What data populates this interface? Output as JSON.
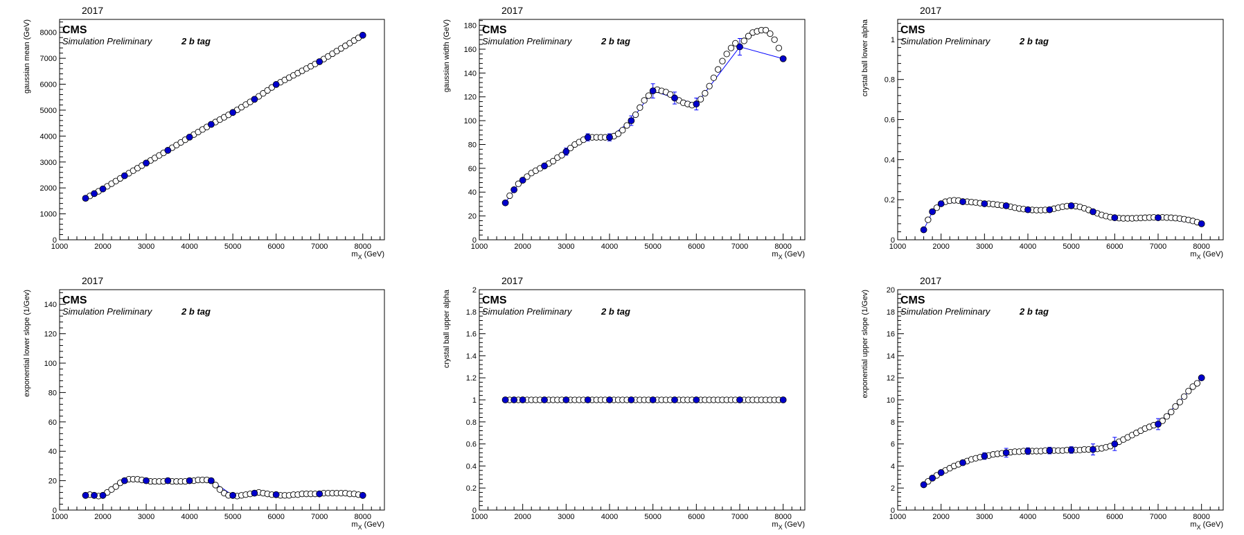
{
  "figure": {
    "year": "2017",
    "experiment": "CMS",
    "status": "Simulation Preliminary",
    "category": "2 b tag",
    "x_axis_label": "m_X (GeV)",
    "x_axis_sub": "X",
    "x_axis_unit": "(GeV)",
    "colors": {
      "fit_point": "#0000cc",
      "fit_line": "#0000ff",
      "interp_point": "#000000",
      "frame": "#000000"
    }
  },
  "chart_data": [
    {
      "type": "scatter",
      "title": "",
      "ylabel": "gaussian mean (GeV)",
      "xlabel": "m_X (GeV)",
      "xlim": [
        1000,
        8500
      ],
      "ylim": [
        0,
        8500
      ],
      "xticks": [
        1000,
        2000,
        3000,
        4000,
        5000,
        6000,
        7000,
        8000
      ],
      "yticks": [
        0,
        1000,
        2000,
        3000,
        4000,
        5000,
        6000,
        7000,
        8000
      ],
      "series": [
        {
          "role": "fit",
          "x": [
            1600,
            1800,
            2000,
            2500,
            3000,
            3500,
            4000,
            4500,
            5000,
            5500,
            6000,
            7000,
            8000
          ],
          "y": [
            1600,
            1780,
            1960,
            2470,
            2960,
            3450,
            3960,
            4450,
            4910,
            5420,
            5990,
            6870,
            7890
          ]
        },
        {
          "role": "interpolated",
          "x_range": [
            1700,
            7900
          ],
          "step": 100
        }
      ]
    },
    {
      "type": "scatter",
      "title": "",
      "ylabel": "gaussian width (GeV)",
      "xlabel": "m_X (GeV)",
      "xlim": [
        1000,
        8500
      ],
      "ylim": [
        0,
        185
      ],
      "xticks": [
        1000,
        2000,
        3000,
        4000,
        5000,
        6000,
        7000,
        8000
      ],
      "yticks": [
        0,
        20,
        40,
        60,
        80,
        100,
        120,
        140,
        160,
        180
      ],
      "series": [
        {
          "role": "fit",
          "x": [
            1600,
            1800,
            2000,
            2500,
            3000,
            3500,
            4000,
            4500,
            5000,
            5500,
            6000,
            7000,
            8000
          ],
          "y": [
            31,
            42,
            50,
            62,
            74,
            86,
            86,
            100,
            125,
            119,
            114,
            162,
            152
          ],
          "err": [
            1,
            1,
            1,
            2,
            3,
            3,
            3,
            4,
            6,
            5,
            5,
            7,
            1
          ]
        },
        {
          "role": "interpolated",
          "x": [
            1700,
            1900,
            2100,
            2200,
            2300,
            2400,
            2600,
            2700,
            2800,
            2900,
            3100,
            3200,
            3300,
            3400,
            3600,
            3700,
            3800,
            3900,
            4100,
            4200,
            4300,
            4400,
            4600,
            4700,
            4800,
            4900,
            5100,
            5200,
            5300,
            5400,
            5600,
            5700,
            5800,
            5900,
            6100,
            6200,
            6300,
            6400,
            6500,
            6600,
            6700,
            6800,
            6900,
            7100,
            7200,
            7300,
            7400,
            7500,
            7600,
            7700,
            7800,
            7900
          ],
          "y": [
            37,
            47,
            53,
            56,
            58,
            60,
            64,
            66,
            69,
            71,
            77,
            80,
            82,
            84,
            86,
            86,
            86,
            86,
            87,
            89,
            92,
            96,
            105,
            111,
            117,
            121,
            126,
            125,
            124,
            122,
            117,
            115,
            114,
            113,
            118,
            123,
            129,
            136,
            143,
            150,
            156,
            161,
            165,
            167,
            171,
            174,
            175,
            176,
            176,
            173,
            168,
            161
          ]
        }
      ]
    },
    {
      "type": "scatter",
      "title": "",
      "ylabel": "crystal ball lower alpha",
      "xlabel": "m_X (GeV)",
      "xlim": [
        1000,
        8500
      ],
      "ylim": [
        0,
        1.1
      ],
      "xticks": [
        1000,
        2000,
        3000,
        4000,
        5000,
        6000,
        7000,
        8000
      ],
      "yticks": [
        0,
        0.2,
        0.4,
        0.6,
        0.8,
        1
      ],
      "series": [
        {
          "role": "fit",
          "x": [
            1600,
            1800,
            2000,
            2500,
            3000,
            3500,
            4000,
            4500,
            5000,
            5500,
            6000,
            7000,
            8000
          ],
          "y": [
            0.05,
            0.14,
            0.18,
            0.19,
            0.18,
            0.17,
            0.15,
            0.15,
            0.17,
            0.14,
            0.11,
            0.11,
            0.08
          ]
        },
        {
          "role": "interpolated",
          "x": [
            1700,
            1900,
            2100,
            2200,
            2300,
            2400,
            2600,
            2700,
            2800,
            2900,
            3100,
            3200,
            3300,
            3400,
            3600,
            3700,
            3800,
            3900,
            4100,
            4200,
            4300,
            4400,
            4600,
            4700,
            4800,
            4900,
            5100,
            5200,
            5300,
            5400,
            5600,
            5700,
            5800,
            5900,
            6100,
            6200,
            6300,
            6400,
            6500,
            6600,
            6700,
            6800,
            6900,
            7100,
            7200,
            7300,
            7400,
            7500,
            7600,
            7700,
            7800,
            7900
          ],
          "y": [
            0.1,
            0.16,
            0.19,
            0.195,
            0.197,
            0.196,
            0.19,
            0.188,
            0.186,
            0.183,
            0.18,
            0.178,
            0.175,
            0.172,
            0.165,
            0.16,
            0.156,
            0.153,
            0.149,
            0.148,
            0.148,
            0.149,
            0.155,
            0.16,
            0.165,
            0.168,
            0.168,
            0.164,
            0.157,
            0.149,
            0.132,
            0.124,
            0.118,
            0.113,
            0.108,
            0.107,
            0.107,
            0.107,
            0.108,
            0.109,
            0.11,
            0.111,
            0.112,
            0.112,
            0.111,
            0.11,
            0.108,
            0.106,
            0.103,
            0.099,
            0.094,
            0.088
          ]
        }
      ]
    },
    {
      "type": "scatter",
      "title": "",
      "ylabel": "exponential lower slope (1/Gev)",
      "xlabel": "m_X (GeV)",
      "xlim": [
        1000,
        8500
      ],
      "ylim": [
        0,
        150
      ],
      "xticks": [
        1000,
        2000,
        3000,
        4000,
        5000,
        6000,
        7000,
        8000
      ],
      "yticks": [
        0,
        20,
        40,
        60,
        80,
        100,
        120,
        140
      ],
      "series": [
        {
          "role": "fit",
          "x": [
            1600,
            1800,
            2000,
            2500,
            3000,
            3500,
            4000,
            4500,
            5000,
            5500,
            6000,
            7000,
            8000
          ],
          "y": [
            10,
            10,
            10,
            20,
            20,
            20,
            20,
            20,
            10,
            11.5,
            10.5,
            11,
            10
          ]
        },
        {
          "role": "interpolated",
          "x": [
            1700,
            1900,
            2100,
            2200,
            2300,
            2400,
            2600,
            2700,
            2800,
            2900,
            3100,
            3200,
            3300,
            3400,
            3600,
            3700,
            3800,
            3900,
            4100,
            4200,
            4300,
            4400,
            4600,
            4700,
            4800,
            4900,
            5100,
            5200,
            5300,
            5400,
            5600,
            5700,
            5800,
            5900,
            6100,
            6200,
            6300,
            6400,
            6500,
            6600,
            6700,
            6800,
            6900,
            7100,
            7200,
            7300,
            7400,
            7500,
            7600,
            7700,
            7800,
            7900
          ],
          "y": [
            10.5,
            9.5,
            12,
            14,
            16,
            18.5,
            21,
            21,
            21,
            20.5,
            19.5,
            19.5,
            19.5,
            19.5,
            19.5,
            19.5,
            19.5,
            19.5,
            20,
            20.5,
            20.5,
            20.5,
            17,
            14,
            11.5,
            10,
            9.5,
            10,
            10.5,
            11,
            12,
            11.5,
            11,
            10.5,
            10,
            10,
            10,
            10.5,
            10.5,
            11,
            11,
            11,
            11,
            11.5,
            11.5,
            11.5,
            11.5,
            11.5,
            11.5,
            11,
            11,
            10.5
          ]
        }
      ]
    },
    {
      "type": "scatter",
      "title": "",
      "ylabel": "crystal ball upper alpha",
      "xlabel": "m_X (GeV)",
      "xlim": [
        1000,
        8500
      ],
      "ylim": [
        0,
        2
      ],
      "xticks": [
        1000,
        2000,
        3000,
        4000,
        5000,
        6000,
        7000,
        8000
      ],
      "yticks": [
        0,
        0.2,
        0.4,
        0.6,
        0.8,
        1,
        1.2,
        1.4,
        1.6,
        1.8,
        2
      ],
      "series": [
        {
          "role": "fit",
          "x": [
            1600,
            1800,
            2000,
            2500,
            3000,
            3500,
            4000,
            4500,
            5000,
            5500,
            6000,
            7000,
            8000
          ],
          "y": [
            1,
            1,
            1,
            1,
            1,
            1,
            1,
            1,
            1,
            1,
            1,
            1,
            1
          ]
        },
        {
          "role": "interpolated",
          "x_range": [
            1700,
            7900
          ],
          "step": 100,
          "constant": 1
        }
      ]
    },
    {
      "type": "scatter",
      "title": "",
      "ylabel": "exponential upper slope (1/Gev)",
      "xlabel": "m_X (GeV)",
      "xlim": [
        1000,
        8500
      ],
      "ylim": [
        0,
        20
      ],
      "xticks": [
        1000,
        2000,
        3000,
        4000,
        5000,
        6000,
        7000,
        8000
      ],
      "yticks": [
        0,
        2,
        4,
        6,
        8,
        10,
        12,
        14,
        16,
        18,
        20
      ],
      "series": [
        {
          "role": "fit",
          "x": [
            1600,
            1800,
            2000,
            2500,
            3000,
            3500,
            4000,
            4500,
            5000,
            5500,
            6000,
            7000,
            8000
          ],
          "y": [
            2.3,
            2.9,
            3.4,
            4.3,
            4.9,
            5.2,
            5.35,
            5.4,
            5.45,
            5.5,
            6.0,
            7.8,
            12.0
          ],
          "err": [
            0.1,
            0.1,
            0.1,
            0.2,
            0.3,
            0.4,
            0.3,
            0.3,
            0.3,
            0.5,
            0.6,
            0.5,
            0.1
          ]
        },
        {
          "role": "interpolated",
          "x": [
            1700,
            1900,
            2100,
            2200,
            2300,
            2400,
            2600,
            2700,
            2800,
            2900,
            3100,
            3200,
            3300,
            3400,
            3600,
            3700,
            3800,
            3900,
            4100,
            4200,
            4300,
            4400,
            4600,
            4700,
            4800,
            4900,
            5100,
            5200,
            5300,
            5400,
            5600,
            5700,
            5800,
            5900,
            6100,
            6200,
            6300,
            6400,
            6500,
            6600,
            6700,
            6800,
            6900,
            7100,
            7200,
            7300,
            7400,
            7500,
            7600,
            7700,
            7800,
            7900
          ],
          "y": [
            2.6,
            3.15,
            3.6,
            3.8,
            4.0,
            4.15,
            4.45,
            4.6,
            4.7,
            4.8,
            4.95,
            5.05,
            5.1,
            5.15,
            5.25,
            5.3,
            5.3,
            5.35,
            5.35,
            5.35,
            5.35,
            5.4,
            5.4,
            5.4,
            5.4,
            5.45,
            5.45,
            5.45,
            5.5,
            5.5,
            5.55,
            5.6,
            5.7,
            5.8,
            6.2,
            6.4,
            6.6,
            6.8,
            7.0,
            7.2,
            7.4,
            7.55,
            7.7,
            8.1,
            8.5,
            8.9,
            9.4,
            9.8,
            10.3,
            10.8,
            11.2,
            11.5
          ]
        }
      ]
    }
  ]
}
